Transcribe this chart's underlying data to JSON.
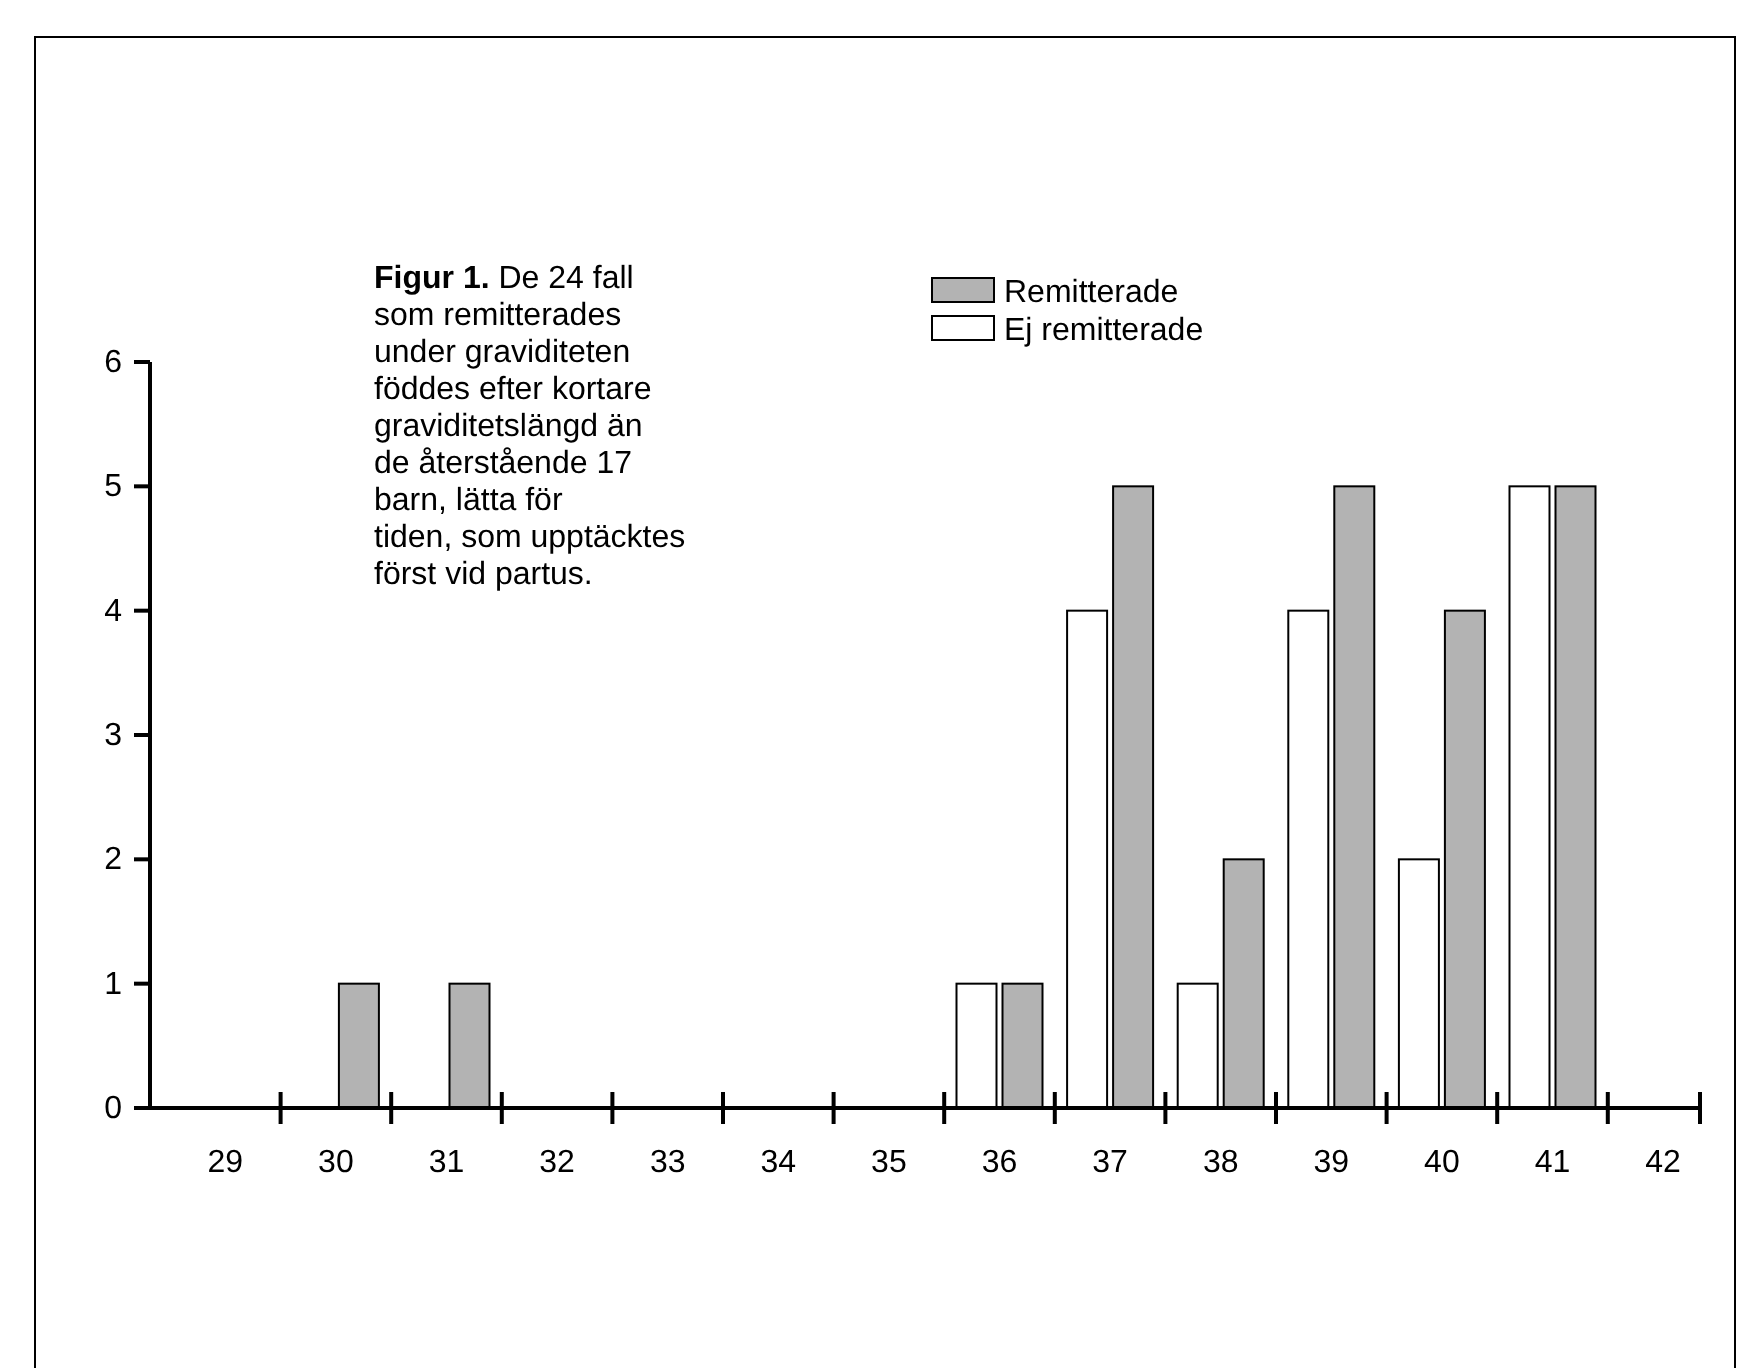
{
  "chart_data": {
    "type": "bar",
    "title": "Figur 1.",
    "subtitle": "De 24 fall som remitterades under graviditeten föddes efter kortare graviditetslängd än de återstående 17 barn, lätta för tiden, som upptäcktes först vid partus.",
    "categories": [
      "29",
      "30",
      "31",
      "32",
      "33",
      "34",
      "35",
      "36",
      "37",
      "38",
      "39",
      "40",
      "41",
      "42"
    ],
    "series": [
      {
        "name": "Remitterade",
        "color": "#b3b3b3",
        "values": [
          0,
          1,
          1,
          0,
          0,
          0,
          0,
          1,
          5,
          2,
          5,
          4,
          5,
          0
        ]
      },
      {
        "name": "Ej remitterade",
        "color": "#ffffff",
        "values": [
          0,
          0,
          0,
          0,
          0,
          0,
          0,
          1,
          4,
          1,
          4,
          2,
          5,
          0
        ]
      }
    ],
    "ylim": [
      0,
      6
    ],
    "yticks": [
      0,
      1,
      2,
      3,
      4,
      5,
      6
    ],
    "grid": false,
    "legend": "top"
  }
}
